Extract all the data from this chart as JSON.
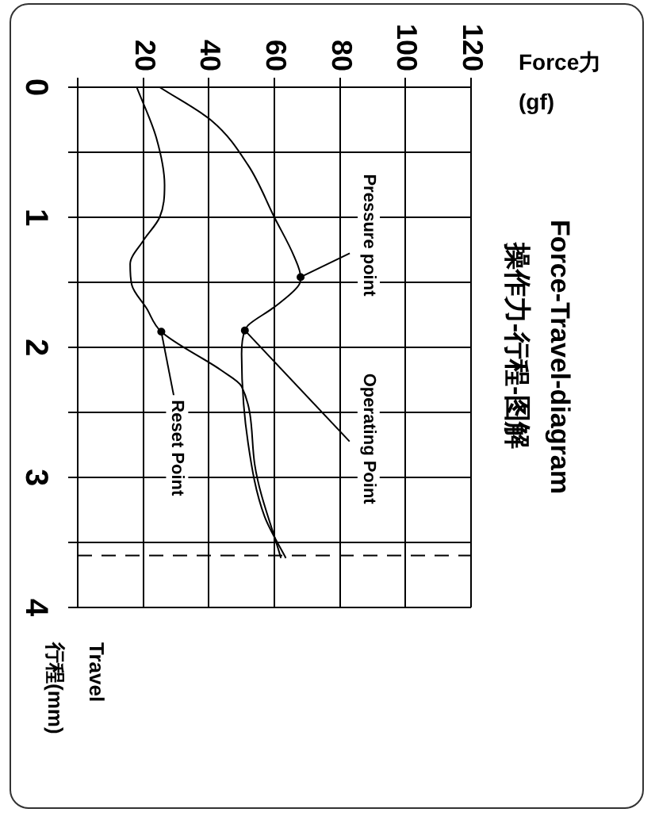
{
  "chart_data": {
    "type": "line",
    "title": "Force-Travel-diagram",
    "subtitle": "操作力-行程-图解",
    "xlabel": "Force力 (gf)",
    "ylabel": "Travel 行程(mm)",
    "xlim": [
      0,
      120
    ],
    "xticks": [
      {
        "value": 0,
        "label": null
      },
      20,
      40,
      60,
      80,
      100,
      120
    ],
    "ylim": [
      4,
      0
    ],
    "yticks": [
      0,
      {
        "value": 0.5,
        "label": null
      },
      1,
      {
        "value": 1.5,
        "label": null
      },
      2,
      {
        "value": 2.5,
        "label": null
      },
      3,
      {
        "value": 3.5,
        "label": null
      },
      4
    ],
    "grid": true,
    "legend": false,
    "marker": "none",
    "line_style": "solid",
    "series": [
      {
        "color": "#000000",
        "x": [
          25,
          41,
          52,
          60,
          66,
          68,
          67.5,
          60,
          52,
          51,
          50,
          52,
          57,
          63.5
        ],
        "values": [
          0,
          0.26,
          0.6,
          1.0,
          1.3,
          1.46,
          1.52,
          1.69,
          1.83,
          1.87,
          2.05,
          2.74,
          3.3,
          3.62
        ]
      },
      {
        "color": "#000000",
        "x": [
          18,
          24,
          26.5,
          25,
          20,
          16,
          16.5,
          21,
          25.5,
          44,
          50,
          54,
          62
        ],
        "values": [
          0,
          0.39,
          0.75,
          1.0,
          1.18,
          1.36,
          1.52,
          1.7,
          1.88,
          2.18,
          2.3,
          2.9,
          3.62
        ]
      }
    ],
    "ref_lines": [
      {
        "axis": "y",
        "value": 3.6,
        "line_style": "dashed",
        "color": "#000000"
      }
    ],
    "annotations": [
      {
        "text": "Pressure point",
        "x": 68,
        "y": 1.46
      },
      {
        "text": "Operating Point",
        "x": 51,
        "y": 1.87
      },
      {
        "text": "Reset Point",
        "x": 25.5,
        "y": 1.88
      }
    ]
  }
}
